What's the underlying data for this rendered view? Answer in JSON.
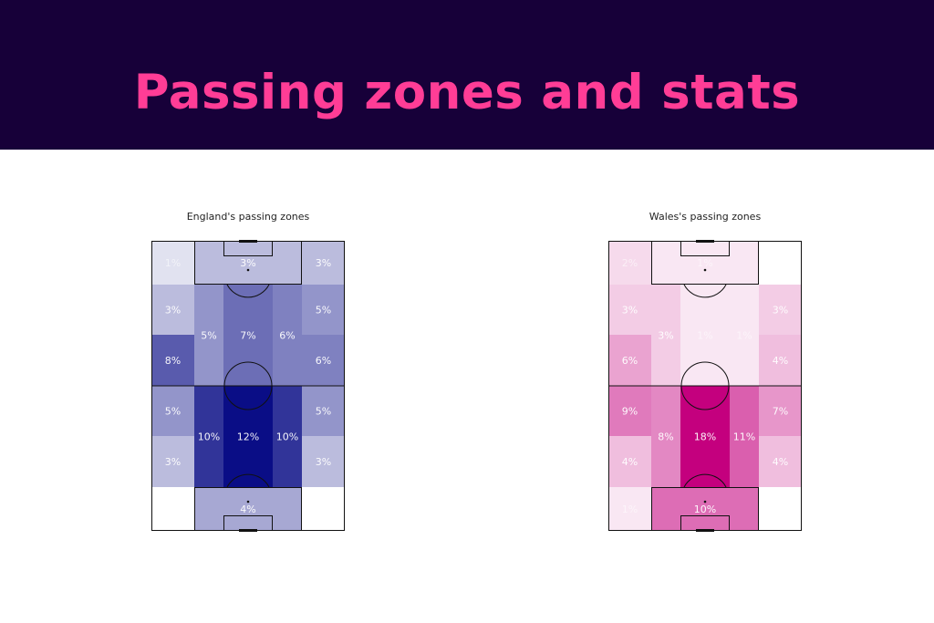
{
  "header": {
    "title": "Passing zones and stats",
    "background": "#170039",
    "title_color": "#ff3d96"
  },
  "chart_data": [
    {
      "type": "heatmap",
      "title": "England's passing zones",
      "color": "#0a0d86",
      "max_value": 12,
      "cells": [
        {
          "zone": "top-left",
          "value": 1
        },
        {
          "zone": "top-box",
          "value": 3
        },
        {
          "zone": "top-right",
          "value": 3
        },
        {
          "zone": "upper-left-wing",
          "value": 3
        },
        {
          "zone": "upper-right-wing",
          "value": 5
        },
        {
          "zone": "upper-left-half",
          "value": 5
        },
        {
          "zone": "upper-centre",
          "value": 7
        },
        {
          "zone": "upper-right-half",
          "value": 6
        },
        {
          "zone": "mid-left-wing",
          "value": 8
        },
        {
          "zone": "mid-right-wing",
          "value": 6
        },
        {
          "zone": "lower-left-wing",
          "value": 5
        },
        {
          "zone": "lower-right-wing",
          "value": 5
        },
        {
          "zone": "lower-left-half",
          "value": 10
        },
        {
          "zone": "lower-centre",
          "value": 12
        },
        {
          "zone": "lower-right-half",
          "value": 10
        },
        {
          "zone": "bottom-left-wing",
          "value": 3
        },
        {
          "zone": "bottom-right-wing",
          "value": 3
        },
        {
          "zone": "bottom-left",
          "value": 0
        },
        {
          "zone": "bottom-box",
          "value": 4
        },
        {
          "zone": "bottom-right",
          "value": 0
        }
      ]
    },
    {
      "type": "heatmap",
      "title": "Wales's passing zones",
      "color": "#c4007e",
      "max_value": 18,
      "cells": [
        {
          "zone": "top-left",
          "value": 2
        },
        {
          "zone": "top-box",
          "value": 1
        },
        {
          "zone": "top-right",
          "value": 0
        },
        {
          "zone": "upper-left-wing",
          "value": 3
        },
        {
          "zone": "upper-right-wing",
          "value": 3
        },
        {
          "zone": "upper-left-half",
          "value": 3
        },
        {
          "zone": "upper-centre",
          "value": 1
        },
        {
          "zone": "upper-right-half",
          "value": 1
        },
        {
          "zone": "mid-left-wing",
          "value": 6
        },
        {
          "zone": "mid-right-wing",
          "value": 4
        },
        {
          "zone": "lower-left-wing",
          "value": 9
        },
        {
          "zone": "lower-right-wing",
          "value": 7
        },
        {
          "zone": "lower-left-half",
          "value": 8
        },
        {
          "zone": "lower-centre",
          "value": 18
        },
        {
          "zone": "lower-right-half",
          "value": 11
        },
        {
          "zone": "bottom-left-wing",
          "value": 4
        },
        {
          "zone": "bottom-right-wing",
          "value": 4
        },
        {
          "zone": "bottom-left",
          "value": 1
        },
        {
          "zone": "bottom-box",
          "value": 10
        },
        {
          "zone": "bottom-right",
          "value": 0
        }
      ]
    }
  ]
}
